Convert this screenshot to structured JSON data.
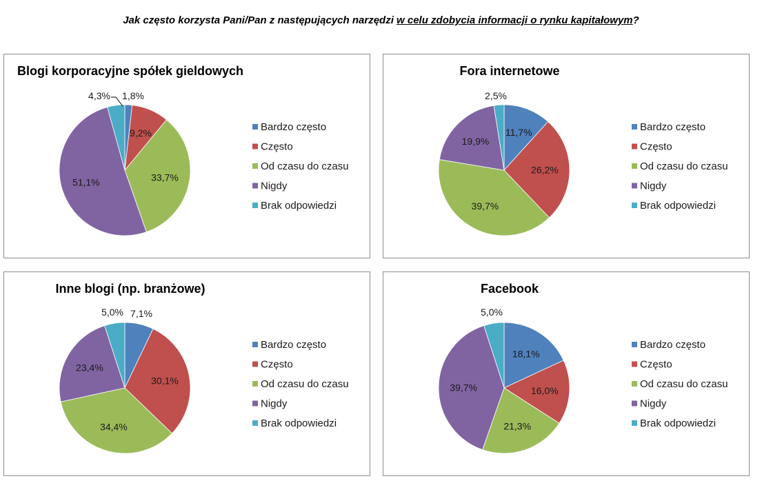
{
  "page_title": {
    "prefix": "Jak często korzysta Pani/Pan z następujących narzędzi ",
    "underlined": "w celu zdobycia informacji o rynku kapitałowym",
    "suffix": "?"
  },
  "colors": {
    "bardzo_czesto": "#4f81bd",
    "czesto": "#c0504d",
    "od_czasu_do_czasu": "#9bbb59",
    "nigdy": "#8064a2",
    "brak_odpowiedzi": "#4bacc6"
  },
  "chart_data": [
    {
      "type": "pie",
      "title": "Blogi korporacyjne spółek gieldowych",
      "categories": [
        "Bardzo często",
        "Często",
        "Od czasu do czasu",
        "Nigdy",
        "Brak odpowiedzi"
      ],
      "values": [
        1.8,
        9.2,
        33.7,
        51.1,
        4.3
      ],
      "labels": [
        "1,8%",
        "9,2%",
        "33,7%",
        "51,1%",
        "4,3%"
      ],
      "legend": "right"
    },
    {
      "type": "pie",
      "title": "Fora internetowe",
      "categories": [
        "Bardzo często",
        "Często",
        "Od czasu do czasu",
        "Nigdy",
        "Brak odpowiedzi"
      ],
      "values": [
        11.7,
        26.2,
        39.7,
        19.9,
        2.5
      ],
      "labels": [
        "11,7%",
        "26,2%",
        "39,7%",
        "19,9%",
        "2,5%"
      ],
      "legend": "right"
    },
    {
      "type": "pie",
      "title": "Inne blogi (np. branżowe)",
      "categories": [
        "Bardzo często",
        "Często",
        "Od czasu do czasu",
        "Nigdy",
        "Brak odpowiedzi"
      ],
      "values": [
        7.1,
        30.1,
        34.4,
        23.4,
        5.0
      ],
      "labels": [
        "7,1%",
        "30,1%",
        "34,4%",
        "23,4%",
        "5,0%"
      ],
      "legend": "right"
    },
    {
      "type": "pie",
      "title": "Facebook",
      "categories": [
        "Bardzo często",
        "Często",
        "Od czasu do czasu",
        "Nigdy",
        "Brak odpowiedzi"
      ],
      "values": [
        18.1,
        16.0,
        21.3,
        39.7,
        5.0
      ],
      "labels": [
        "18,1%",
        "16,0%",
        "21,3%",
        "39,7%",
        "5,0%"
      ],
      "legend": "right"
    }
  ]
}
